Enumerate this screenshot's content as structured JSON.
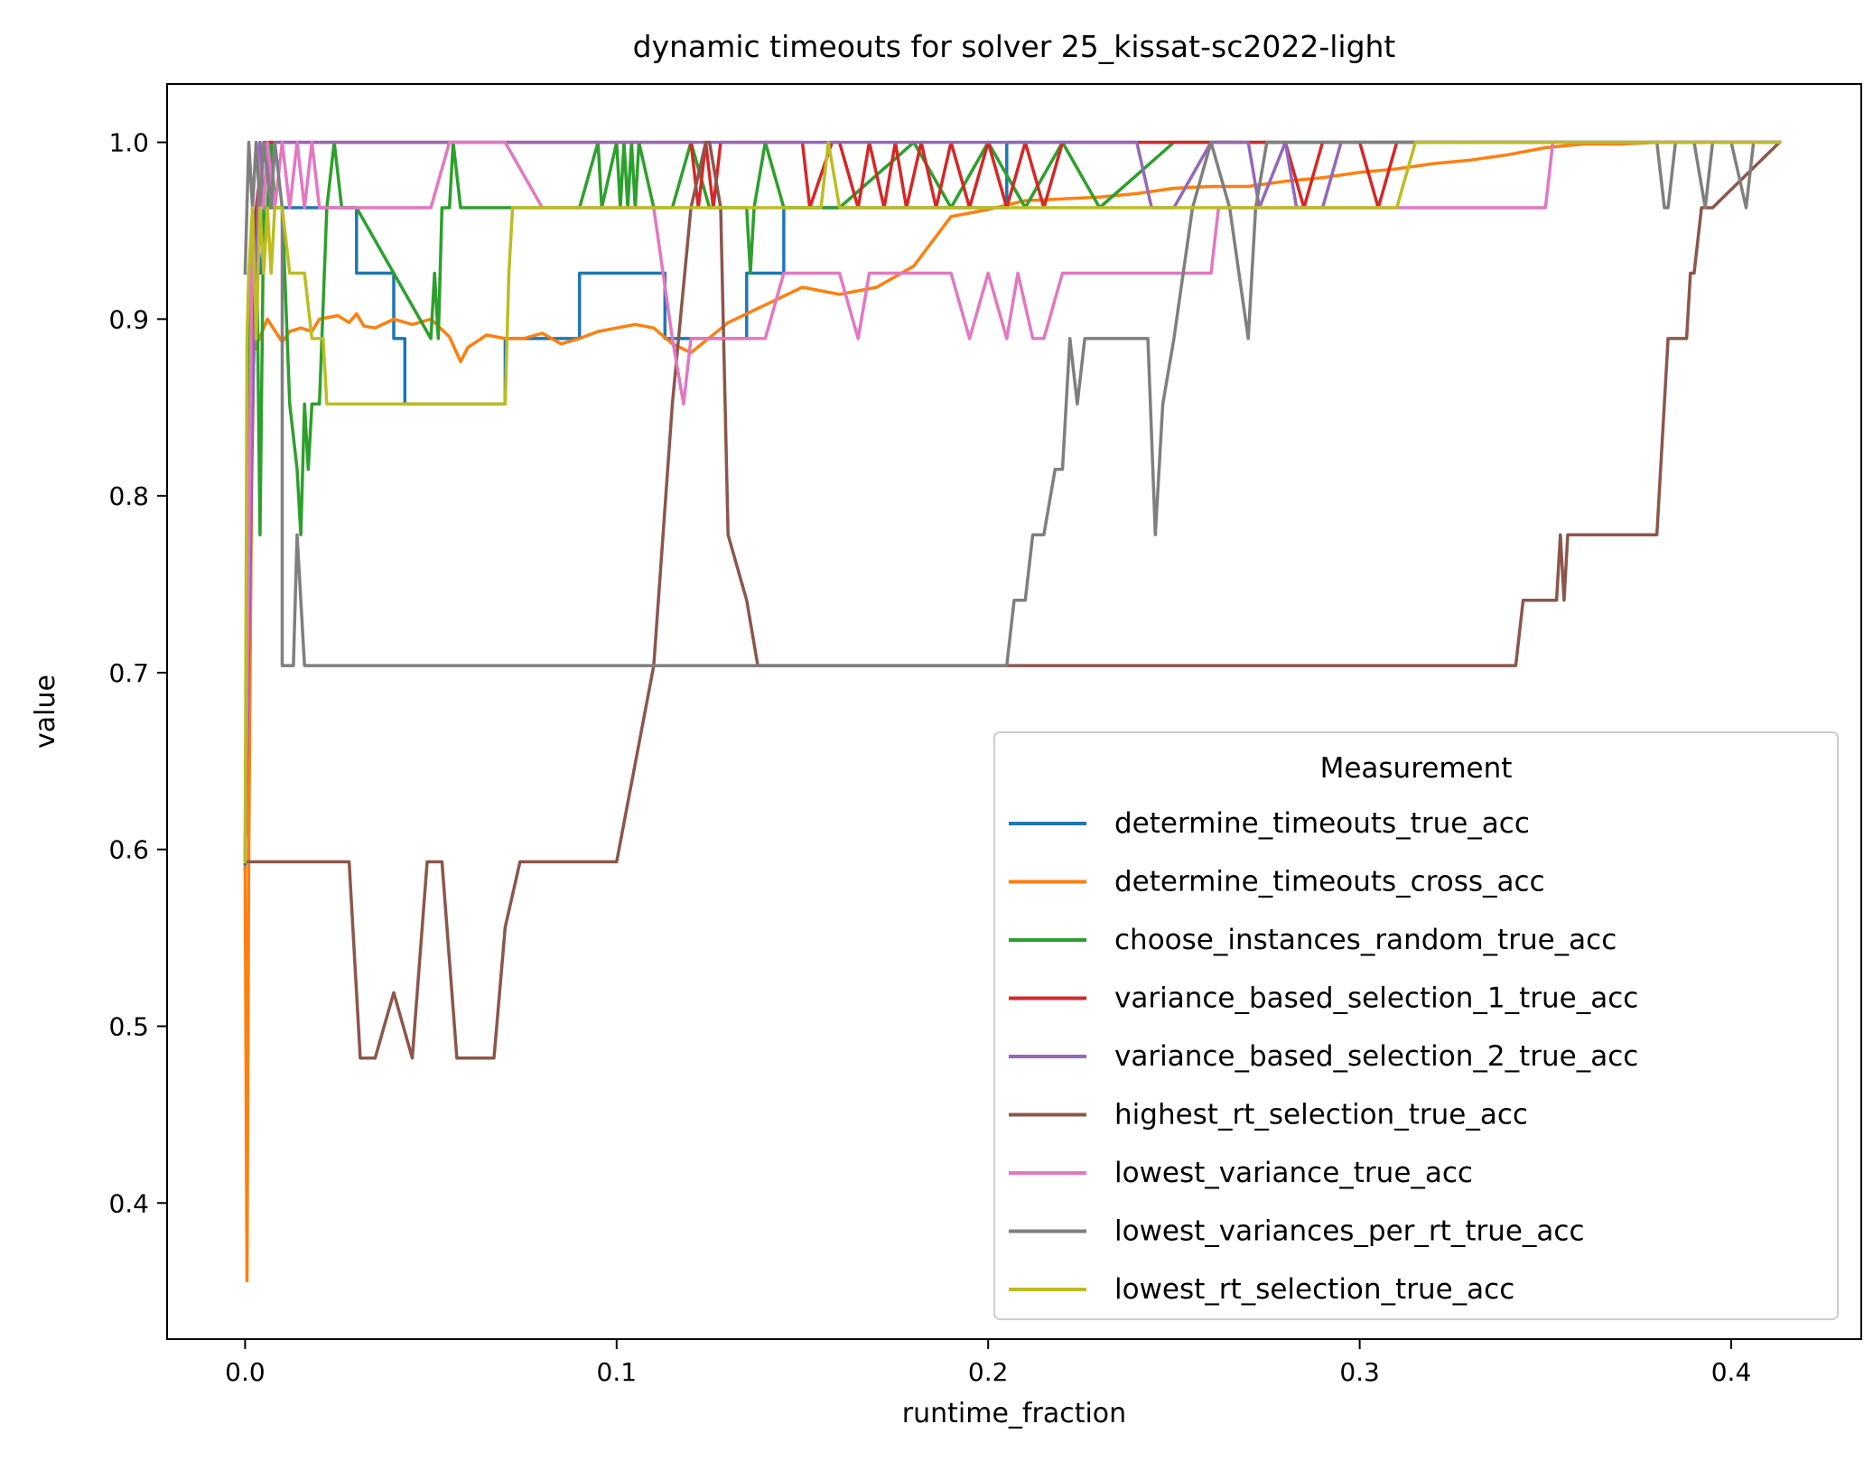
{
  "chart_data": {
    "type": "line",
    "title": "dynamic timeouts for solver 25_kissat-sc2022-light",
    "xlabel": "runtime_fraction",
    "ylabel": "value",
    "xlim": [
      -0.021,
      0.435
    ],
    "ylim": [
      0.323,
      1.033
    ],
    "xticks": [
      0.0,
      0.1,
      0.2,
      0.3,
      0.4
    ],
    "xtick_labels": [
      "0.0",
      "0.1",
      "0.2",
      "0.3",
      "0.4"
    ],
    "yticks": [
      0.4,
      0.5,
      0.6,
      0.7,
      0.8,
      0.9,
      1.0
    ],
    "ytick_labels": [
      "0.4",
      "0.5",
      "0.6",
      "0.7",
      "0.8",
      "0.9",
      "1.0"
    ],
    "grid": false,
    "legend": {
      "title": "Measurement",
      "placement": "lower-right"
    },
    "series": [
      {
        "name": "determine_timeouts_true_acc",
        "color": "#1f77b4",
        "x": [
          0,
          0.002,
          0.004,
          0.006,
          0.008,
          0.02,
          0.03,
          0.03,
          0.035,
          0.04,
          0.04,
          0.043,
          0.043,
          0.05,
          0.07,
          0.07,
          0.09,
          0.09,
          0.11,
          0.113,
          0.113,
          0.125,
          0.135,
          0.135,
          0.145,
          0.145,
          0.16,
          0.2,
          0.205,
          0.205,
          0.33,
          0.33,
          0.413
        ],
        "y": [
          0.59,
          0.963,
          0.926,
          0.963,
          0.963,
          0.963,
          0.963,
          0.926,
          0.926,
          0.926,
          0.889,
          0.889,
          0.852,
          0.852,
          0.852,
          0.889,
          0.889,
          0.926,
          0.926,
          0.926,
          0.889,
          0.889,
          0.889,
          0.926,
          0.926,
          0.963,
          0.963,
          0.963,
          0.963,
          1.0,
          1.0,
          1.0,
          1.0
        ]
      },
      {
        "name": "determine_timeouts_cross_acc",
        "color": "#ff7f0e",
        "x": [
          0,
          0.0005,
          0.001,
          0.002,
          0.004,
          0.006,
          0.01,
          0.012,
          0.015,
          0.018,
          0.02,
          0.025,
          0.028,
          0.03,
          0.032,
          0.035,
          0.04,
          0.045,
          0.05,
          0.055,
          0.058,
          0.06,
          0.065,
          0.07,
          0.075,
          0.08,
          0.085,
          0.09,
          0.095,
          0.1,
          0.105,
          0.11,
          0.115,
          0.12,
          0.13,
          0.14,
          0.15,
          0.16,
          0.17,
          0.18,
          0.19,
          0.2,
          0.21,
          0.22,
          0.23,
          0.24,
          0.25,
          0.26,
          0.27,
          0.28,
          0.29,
          0.3,
          0.31,
          0.32,
          0.33,
          0.34,
          0.35,
          0.36,
          0.37,
          0.38,
          0.39,
          0.4,
          0.413
        ],
        "y": [
          0.59,
          0.356,
          0.6,
          0.88,
          0.89,
          0.9,
          0.887,
          0.893,
          0.895,
          0.893,
          0.9,
          0.902,
          0.898,
          0.903,
          0.896,
          0.895,
          0.9,
          0.897,
          0.9,
          0.89,
          0.876,
          0.884,
          0.891,
          0.889,
          0.889,
          0.892,
          0.886,
          0.889,
          0.893,
          0.895,
          0.897,
          0.895,
          0.886,
          0.881,
          0.898,
          0.908,
          0.918,
          0.914,
          0.918,
          0.93,
          0.958,
          0.962,
          0.967,
          0.968,
          0.969,
          0.971,
          0.974,
          0.975,
          0.975,
          0.978,
          0.98,
          0.983,
          0.985,
          0.988,
          0.99,
          0.993,
          0.997,
          0.999,
          0.999,
          1.0,
          1.0,
          1.0,
          1.0
        ]
      },
      {
        "name": "choose_instances_random_true_acc",
        "color": "#2ca02c",
        "x": [
          0,
          0.001,
          0.002,
          0.003,
          0.004,
          0.005,
          0.006,
          0.007,
          0.008,
          0.01,
          0.012,
          0.014,
          0.015,
          0.016,
          0.017,
          0.018,
          0.02,
          0.022,
          0.024,
          0.026,
          0.03,
          0.05,
          0.051,
          0.052,
          0.053,
          0.054,
          0.055,
          0.056,
          0.058,
          0.06,
          0.065,
          0.07,
          0.09,
          0.095,
          0.096,
          0.1,
          0.101,
          0.102,
          0.103,
          0.104,
          0.105,
          0.106,
          0.11,
          0.115,
          0.12,
          0.125,
          0.13,
          0.135,
          0.136,
          0.137,
          0.14,
          0.145,
          0.15,
          0.16,
          0.18,
          0.19,
          0.2,
          0.21,
          0.22,
          0.23,
          0.25,
          0.26,
          0.413
        ],
        "y": [
          0.593,
          0.926,
          0.889,
          0.963,
          0.778,
          0.963,
          0.963,
          1.0,
          0.963,
          0.963,
          0.852,
          0.815,
          0.778,
          0.852,
          0.815,
          0.852,
          0.852,
          0.963,
          1.0,
          0.963,
          0.963,
          0.889,
          0.926,
          0.889,
          0.963,
          0.963,
          0.963,
          1.0,
          0.963,
          0.963,
          0.963,
          0.963,
          0.963,
          1.0,
          0.963,
          1.0,
          0.963,
          1.0,
          0.963,
          1.0,
          0.963,
          1.0,
          0.963,
          0.963,
          1.0,
          0.963,
          0.963,
          0.963,
          0.926,
          0.963,
          1.0,
          0.963,
          0.963,
          0.963,
          1.0,
          0.963,
          1.0,
          0.963,
          1.0,
          0.963,
          1.0,
          1.0,
          1.0
        ]
      },
      {
        "name": "variance_based_selection_1_true_acc",
        "color": "#d62728",
        "x": [
          0,
          0.003,
          0.005,
          0.12,
          0.122,
          0.124,
          0.126,
          0.128,
          0.14,
          0.15,
          0.152,
          0.158,
          0.16,
          0.165,
          0.168,
          0.172,
          0.175,
          0.178,
          0.182,
          0.186,
          0.19,
          0.195,
          0.2,
          0.205,
          0.21,
          0.215,
          0.22,
          0.225,
          0.25,
          0.28,
          0.285,
          0.29,
          0.3,
          0.305,
          0.31,
          0.413
        ],
        "y": [
          0.593,
          0.963,
          1.0,
          1.0,
          0.963,
          1.0,
          0.963,
          1.0,
          1.0,
          1.0,
          0.963,
          1.0,
          1.0,
          0.963,
          1.0,
          0.963,
          1.0,
          0.963,
          1.0,
          0.963,
          1.0,
          0.963,
          1.0,
          0.963,
          1.0,
          0.963,
          1.0,
          1.0,
          1.0,
          1.0,
          0.963,
          1.0,
          1.0,
          0.963,
          1.0,
          1.0
        ]
      },
      {
        "name": "variance_based_selection_2_true_acc",
        "color": "#9467bd",
        "x": [
          0,
          0.002,
          0.003,
          0.004,
          0.005,
          0.006,
          0.007,
          0.008,
          0.24,
          0.244,
          0.25,
          0.26,
          0.27,
          0.273,
          0.28,
          0.283,
          0.29,
          0.295,
          0.413
        ],
        "y": [
          0.593,
          0.852,
          0.926,
          1.0,
          0.963,
          1.0,
          0.963,
          1.0,
          1.0,
          0.963,
          0.963,
          1.0,
          1.0,
          0.963,
          1.0,
          0.963,
          0.963,
          1.0,
          1.0
        ]
      },
      {
        "name": "highest_rt_selection_true_acc",
        "color": "#8c564b",
        "x": [
          0,
          0.0005,
          0.001,
          0.028,
          0.031,
          0.035,
          0.04,
          0.045,
          0.049,
          0.053,
          0.057,
          0.065,
          0.067,
          0.07,
          0.074,
          0.1,
          0.11,
          0.115,
          0.12,
          0.124,
          0.125,
          0.128,
          0.13,
          0.135,
          0.138,
          0.205,
          0.245,
          0.342,
          0.344,
          0.353,
          0.354,
          0.355,
          0.356,
          0.38,
          0.381,
          0.383,
          0.385,
          0.388,
          0.389,
          0.39,
          0.392,
          0.395,
          0.413
        ],
        "y": [
          0.593,
          0.593,
          0.593,
          0.593,
          0.482,
          0.482,
          0.519,
          0.482,
          0.593,
          0.593,
          0.482,
          0.482,
          0.482,
          0.556,
          0.593,
          0.593,
          0.704,
          0.852,
          0.963,
          1.0,
          1.0,
          0.963,
          0.778,
          0.741,
          0.704,
          0.704,
          0.704,
          0.704,
          0.741,
          0.741,
          0.778,
          0.741,
          0.778,
          0.778,
          0.815,
          0.889,
          0.889,
          0.889,
          0.926,
          0.926,
          0.963,
          0.963,
          1.0
        ]
      },
      {
        "name": "lowest_variance_true_acc",
        "color": "#e377c2",
        "x": [
          0,
          0.002,
          0.003,
          0.005,
          0.006,
          0.008,
          0.01,
          0.012,
          0.014,
          0.016,
          0.018,
          0.02,
          0.05,
          0.055,
          0.07,
          0.08,
          0.11,
          0.115,
          0.118,
          0.12,
          0.14,
          0.145,
          0.16,
          0.165,
          0.168,
          0.175,
          0.19,
          0.195,
          0.2,
          0.205,
          0.208,
          0.212,
          0.215,
          0.22,
          0.23,
          0.24,
          0.26,
          0.262,
          0.32,
          0.35,
          0.352,
          0.413
        ],
        "y": [
          0.593,
          0.963,
          1.0,
          0.963,
          1.0,
          0.963,
          1.0,
          0.963,
          1.0,
          0.963,
          1.0,
          0.963,
          0.963,
          1.0,
          1.0,
          0.963,
          0.963,
          0.889,
          0.852,
          0.889,
          0.889,
          0.926,
          0.926,
          0.889,
          0.926,
          0.926,
          0.926,
          0.889,
          0.926,
          0.889,
          0.926,
          0.889,
          0.889,
          0.926,
          0.926,
          0.926,
          0.926,
          0.963,
          0.963,
          0.963,
          1.0,
          1.0
        ]
      },
      {
        "name": "lowest_variances_per_rt_true_acc",
        "color": "#7f7f7f",
        "x": [
          0,
          0.001,
          0.002,
          0.003,
          0.004,
          0.005,
          0.007,
          0.008,
          0.01,
          0.01,
          0.013,
          0.014,
          0.015,
          0.016,
          0.205,
          0.207,
          0.21,
          0.212,
          0.215,
          0.218,
          0.22,
          0.222,
          0.224,
          0.226,
          0.228,
          0.23,
          0.243,
          0.245,
          0.247,
          0.25,
          0.255,
          0.26,
          0.265,
          0.27,
          0.272,
          0.275,
          0.3,
          0.38,
          0.382,
          0.383,
          0.385,
          0.39,
          0.393,
          0.395,
          0.4,
          0.404,
          0.406,
          0.413
        ],
        "y": [
          0.926,
          1.0,
          0.963,
          1.0,
          0.963,
          1.0,
          0.963,
          1.0,
          0.963,
          0.704,
          0.704,
          0.778,
          0.741,
          0.704,
          0.704,
          0.741,
          0.741,
          0.778,
          0.778,
          0.815,
          0.815,
          0.889,
          0.852,
          0.889,
          0.889,
          0.889,
          0.889,
          0.778,
          0.852,
          0.889,
          0.963,
          1.0,
          0.963,
          0.889,
          0.963,
          1.0,
          1.0,
          1.0,
          0.963,
          0.963,
          1.0,
          1.0,
          0.963,
          1.0,
          1.0,
          0.963,
          1.0,
          1.0
        ]
      },
      {
        "name": "lowest_rt_selection_true_acc",
        "color": "#bcbd22",
        "x": [
          0,
          0.0005,
          0.001,
          0.002,
          0.003,
          0.004,
          0.005,
          0.006,
          0.007,
          0.008,
          0.01,
          0.012,
          0.016,
          0.018,
          0.02,
          0.021,
          0.022,
          0.07,
          0.071,
          0.072,
          0.155,
          0.157,
          0.16,
          0.31,
          0.315,
          0.413
        ],
        "y": [
          0.593,
          0.889,
          0.926,
          0.963,
          0.889,
          0.963,
          0.926,
          0.963,
          0.926,
          0.963,
          0.963,
          0.926,
          0.926,
          0.889,
          0.889,
          0.889,
          0.852,
          0.852,
          0.926,
          0.963,
          0.963,
          1.0,
          0.963,
          0.963,
          1.0,
          1.0
        ]
      }
    ]
  }
}
